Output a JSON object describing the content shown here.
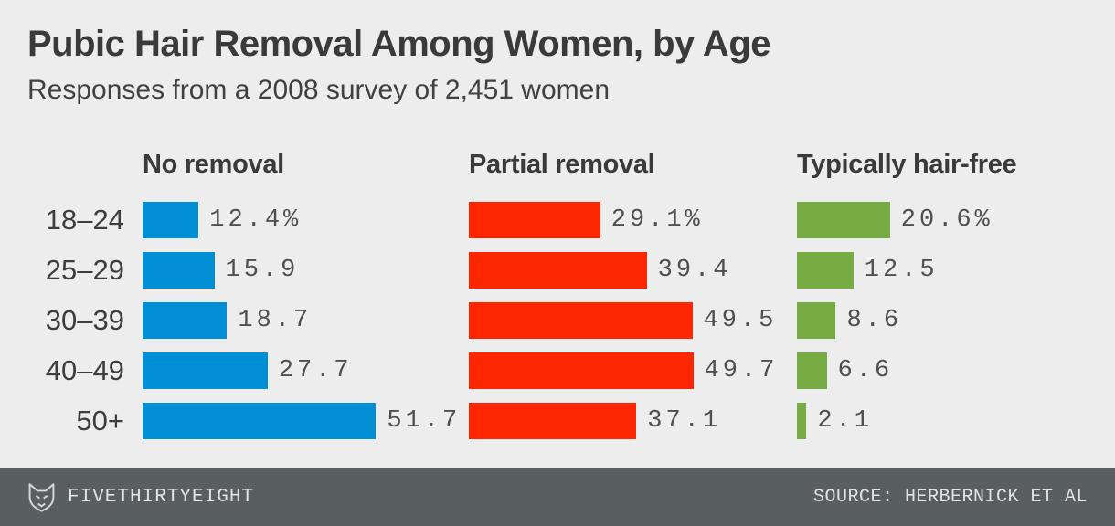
{
  "title": "Pubic Hair Removal Among Women, by Age",
  "subtitle": "Responses from a 2008 survey of 2,451 women",
  "footer": {
    "brand": "FIVETHIRTYEIGHT",
    "source": "SOURCE: HERBERNICK ET AL",
    "logo_icon": "fox-logo",
    "background": "#595E5F"
  },
  "colors": {
    "background": "#EDEDED",
    "heading_text": "#3A3A3A",
    "value_text": "#4F4F4F",
    "footer_text": "#E3E3E3"
  },
  "chart_data": {
    "type": "bar",
    "orientation": "horizontal",
    "title": "Pubic Hair Removal Among Women, by Age",
    "subtitle": "Responses from a 2008 survey of 2,451 women",
    "unit": "%",
    "xlim": [
      0,
      52
    ],
    "grid": false,
    "legend_position": "column-headers",
    "categories": [
      "18–24",
      "25–29",
      "30–39",
      "40–49",
      "50+"
    ],
    "series": [
      {
        "name": "No removal",
        "color": "#008FD5",
        "values": [
          12.4,
          15.9,
          18.7,
          27.7,
          51.7
        ],
        "labels": [
          "12.4%",
          "15.9",
          "18.7",
          "27.7",
          "51.7"
        ]
      },
      {
        "name": "Partial removal",
        "color": "#FC2600",
        "values": [
          29.1,
          39.4,
          49.5,
          49.7,
          37.1
        ],
        "labels": [
          "29.1%",
          "39.4",
          "49.5",
          "49.7",
          "37.1"
        ]
      },
      {
        "name": "Typically hair-free",
        "color": "#77AB43",
        "values": [
          20.6,
          12.5,
          8.6,
          6.6,
          2.1
        ],
        "labels": [
          "20.6%",
          "12.5",
          "8.6",
          "6.6",
          "2.1"
        ]
      }
    ]
  }
}
